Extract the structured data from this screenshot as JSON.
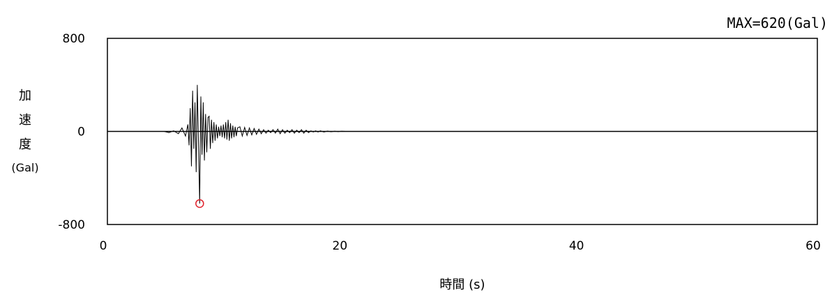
{
  "chart_data": {
    "type": "line",
    "annotation": "MAX=620(Gal)",
    "xlabel": "時間 (s)",
    "ylabel_lines": [
      "加",
      "速",
      "度",
      "(Gal)"
    ],
    "xlim": [
      0,
      60
    ],
    "ylim": [
      -800,
      800
    ],
    "xticks": [
      "0",
      "20",
      "40",
      "60"
    ],
    "yticks": [
      "800",
      "0",
      "-800"
    ],
    "peak": {
      "x": 7.8,
      "y": -620
    },
    "colors": {
      "line": "#000000",
      "marker": "#e0202a"
    },
    "series": [
      {
        "x": [
          4.8,
          5.2,
          5.6,
          6.0,
          6.3,
          6.6,
          6.8,
          6.9,
          7.0,
          7.1,
          7.2,
          7.3,
          7.4,
          7.5,
          7.6,
          7.7,
          7.8,
          7.9,
          8.0,
          8.1,
          8.2,
          8.3,
          8.4,
          8.5,
          8.6,
          8.7,
          8.8,
          8.9,
          9.0,
          9.1,
          9.2,
          9.3,
          9.4,
          9.5,
          9.6,
          9.7,
          9.8,
          9.9,
          10.0,
          10.1,
          10.2,
          10.3,
          10.4,
          10.5,
          10.6,
          10.7,
          10.8,
          10.9,
          11.0,
          11.2,
          11.4,
          11.6,
          11.8,
          12.0,
          12.2,
          12.4,
          12.6,
          12.8,
          13.0,
          13.2,
          13.4,
          13.6,
          13.8,
          14.0,
          14.2,
          14.4,
          14.6,
          14.8,
          15.0,
          15.2,
          15.4,
          15.6,
          15.8,
          16.0,
          16.2,
          16.4,
          16.6,
          16.8,
          17.0,
          17.2,
          17.4,
          17.6,
          17.8,
          18.0,
          18.3,
          18.6,
          18.9,
          19.2,
          19.5,
          19.8,
          20.1
        ],
        "y": [
          0,
          -10,
          5,
          -20,
          30,
          -40,
          60,
          -120,
          200,
          -300,
          350,
          -150,
          250,
          -350,
          400,
          -100,
          -620,
          300,
          -200,
          250,
          -250,
          150,
          -180,
          120,
          130,
          -150,
          100,
          -100,
          80,
          -80,
          60,
          -60,
          40,
          -40,
          50,
          -50,
          60,
          -60,
          80,
          -70,
          100,
          -80,
          70,
          -60,
          50,
          -50,
          40,
          -40,
          30,
          40,
          -40,
          35,
          -35,
          30,
          -30,
          25,
          -25,
          20,
          -20,
          15,
          -15,
          10,
          -10,
          15,
          -15,
          20,
          -20,
          15,
          -15,
          10,
          -10,
          15,
          -15,
          10,
          -10,
          15,
          -15,
          10,
          -10,
          5,
          -5,
          5,
          -5,
          5,
          -5,
          3,
          -3,
          2,
          -2,
          1,
          0
        ]
      }
    ]
  }
}
